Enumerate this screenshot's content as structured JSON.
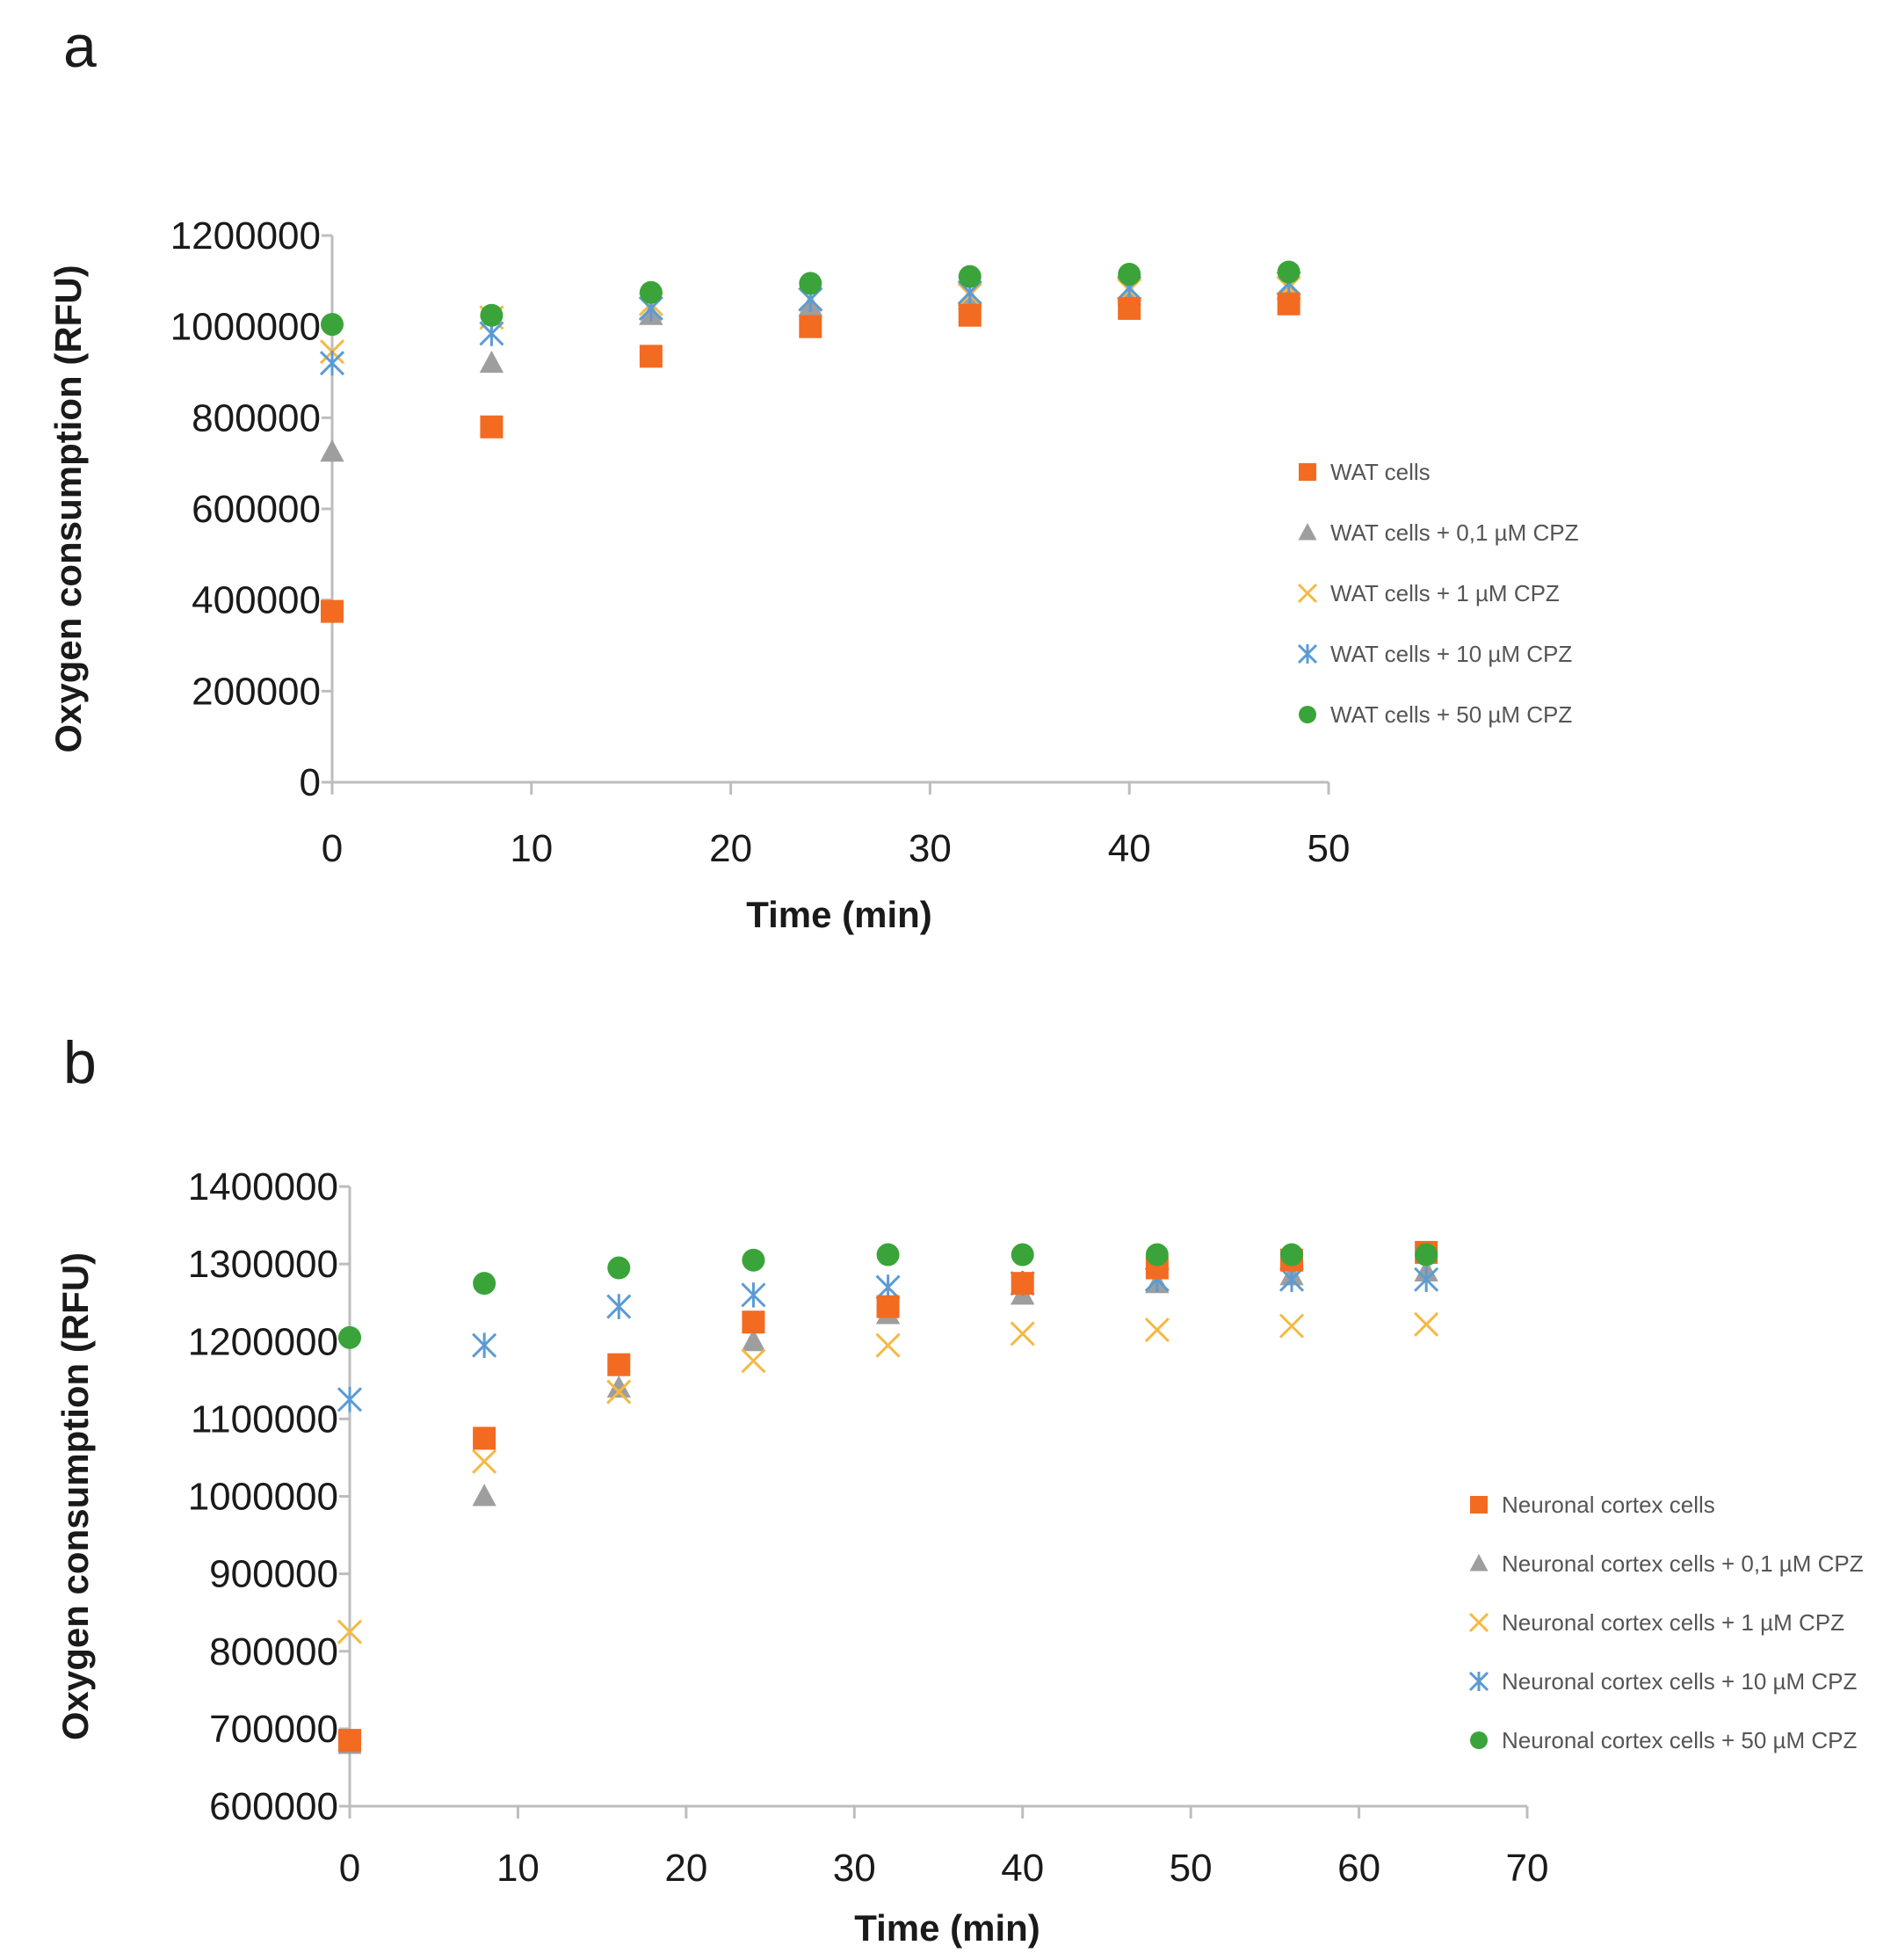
{
  "figure": {
    "panel_letters": [
      "a",
      "b"
    ]
  },
  "chart_data": [
    {
      "type": "scatter",
      "panel": "a",
      "title": "",
      "xlabel": "Time (min)",
      "ylabel": "Oxygen consumption (RFU)",
      "xlim": [
        0,
        50
      ],
      "ylim": [
        0,
        1200000
      ],
      "xticks": [
        0,
        10,
        20,
        30,
        40,
        50
      ],
      "yticks": [
        0,
        200000,
        400000,
        600000,
        800000,
        1000000,
        1200000
      ],
      "xtick_labels": [
        "0",
        "10",
        "20",
        "30",
        "40",
        "50"
      ],
      "ytick_labels": [
        "0",
        "200000",
        "400000",
        "600000",
        "800000",
        "1000000",
        "1200000"
      ],
      "legend_position": "right",
      "x": [
        0,
        8,
        16,
        24,
        32,
        40,
        48
      ],
      "series": [
        {
          "name": "WAT cells",
          "marker": "square",
          "color": "#f26b21",
          "values": [
            375000,
            780000,
            935000,
            1000000,
            1025000,
            1040000,
            1050000
          ]
        },
        {
          "name": "WAT cells + 0,1 µM CPZ",
          "marker": "triangle",
          "color": "#9e9e9e",
          "values": [
            725000,
            920000,
            1025000,
            1045000,
            1060000,
            1070000,
            1080000
          ]
        },
        {
          "name": "WAT cells + 1 µM CPZ",
          "marker": "x",
          "color": "#f5b942",
          "values": [
            945000,
            1020000,
            1050000,
            1060000,
            1070000,
            1080000,
            1085000
          ]
        },
        {
          "name": "WAT cells + 10 µM CPZ",
          "marker": "asterisk",
          "color": "#5b9bd5",
          "values": [
            920000,
            985000,
            1040000,
            1060000,
            1075000,
            1085000,
            1095000
          ]
        },
        {
          "name": "WAT cells + 50 µM CPZ",
          "marker": "circle",
          "color": "#3aa43a",
          "values": [
            1005000,
            1025000,
            1075000,
            1095000,
            1110000,
            1115000,
            1120000
          ]
        }
      ]
    },
    {
      "type": "scatter",
      "panel": "b",
      "title": "",
      "xlabel": "Time (min)",
      "ylabel": "Oxygen consumption (RFU)",
      "xlim": [
        0,
        70
      ],
      "ylim": [
        600000,
        1400000
      ],
      "xticks": [
        0,
        10,
        20,
        30,
        40,
        50,
        60,
        70
      ],
      "yticks": [
        600000,
        700000,
        800000,
        900000,
        1000000,
        1100000,
        1200000,
        1300000,
        1400000
      ],
      "xtick_labels": [
        "0",
        "10",
        "20",
        "30",
        "40",
        "50",
        "60",
        "70"
      ],
      "ytick_labels": [
        "600000",
        "700000",
        "800000",
        "900000",
        "1000000",
        "1100000",
        "1200000",
        "1300000",
        "1400000"
      ],
      "legend_position": "right",
      "x": [
        0,
        8,
        16,
        24,
        32,
        40,
        48,
        56,
        64
      ],
      "series": [
        {
          "name": "Neuronal cortex cells",
          "marker": "square",
          "color": "#f26b21",
          "values": [
            685000,
            1075000,
            1170000,
            1225000,
            1245000,
            1275000,
            1295000,
            1305000,
            1315000
          ]
        },
        {
          "name": "Neuronal cortex cells + 0,1 µM CPZ",
          "marker": "triangle",
          "color": "#9e9e9e",
          "values": [
            680000,
            1000000,
            1140000,
            1200000,
            1235000,
            1260000,
            1275000,
            1285000,
            1290000
          ]
        },
        {
          "name": "Neuronal cortex cells + 1 µM CPZ",
          "marker": "x",
          "color": "#f5b942",
          "values": [
            825000,
            1045000,
            1135000,
            1175000,
            1195000,
            1210000,
            1215000,
            1220000,
            1222000
          ]
        },
        {
          "name": "Neuronal cortex cells + 10 µM CPZ",
          "marker": "asterisk",
          "color": "#5b9bd5",
          "values": [
            1125000,
            1195000,
            1245000,
            1260000,
            1270000,
            1275000,
            1280000,
            1280000,
            1280000
          ]
        },
        {
          "name": "Neuronal cortex cells + 50 µM CPZ",
          "marker": "circle",
          "color": "#3aa43a",
          "values": [
            1205000,
            1275000,
            1295000,
            1305000,
            1312000,
            1312000,
            1312000,
            1312000,
            1312000
          ]
        }
      ]
    }
  ]
}
